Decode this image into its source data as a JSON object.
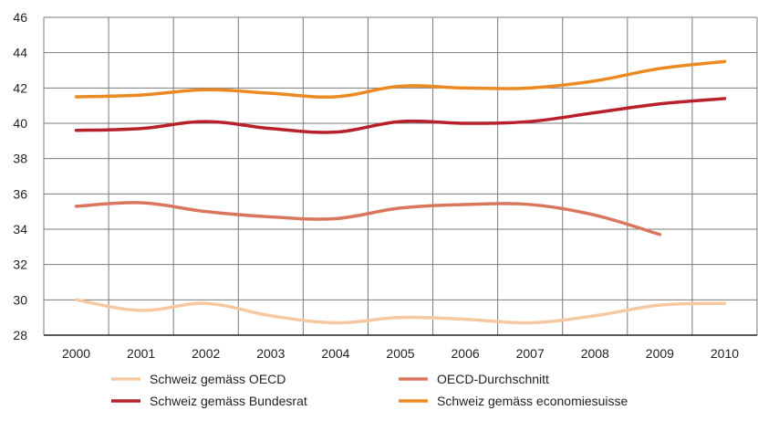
{
  "chart_data": {
    "type": "line",
    "title": "",
    "xlabel": "",
    "ylabel": "",
    "categories": [
      "2000",
      "2001",
      "2002",
      "2003",
      "2004",
      "2005",
      "2006",
      "2007",
      "2008",
      "2009",
      "2010"
    ],
    "ylim": [
      28,
      46
    ],
    "yticks": [
      "28",
      "30",
      "32",
      "34",
      "36",
      "38",
      "40",
      "42",
      "44",
      "46"
    ],
    "grid": true,
    "legend_position": "bottom",
    "series": [
      {
        "name": "Schweiz gemäss OECD",
        "color": "#f6c8a2",
        "values": [
          30.0,
          29.4,
          29.8,
          29.1,
          28.7,
          29.0,
          28.9,
          28.7,
          29.1,
          29.7,
          29.8
        ]
      },
      {
        "name": "OECD-Durchschnitt",
        "color": "#d9765d",
        "values": [
          35.3,
          35.5,
          35.0,
          34.7,
          34.6,
          35.2,
          35.4,
          35.4,
          34.8,
          33.7,
          null
        ]
      },
      {
        "name": "Schweiz gemäss Bundesrat",
        "color": "#b8202c",
        "values": [
          39.6,
          39.7,
          40.1,
          39.7,
          39.5,
          40.1,
          40.0,
          40.1,
          40.6,
          41.1,
          41.4
        ]
      },
      {
        "name": "Schweiz gemäss economiesuisse",
        "color": "#ec8a22",
        "values": [
          41.5,
          41.6,
          41.9,
          41.7,
          41.5,
          42.1,
          42.0,
          42.0,
          42.4,
          43.1,
          43.5
        ]
      }
    ]
  }
}
